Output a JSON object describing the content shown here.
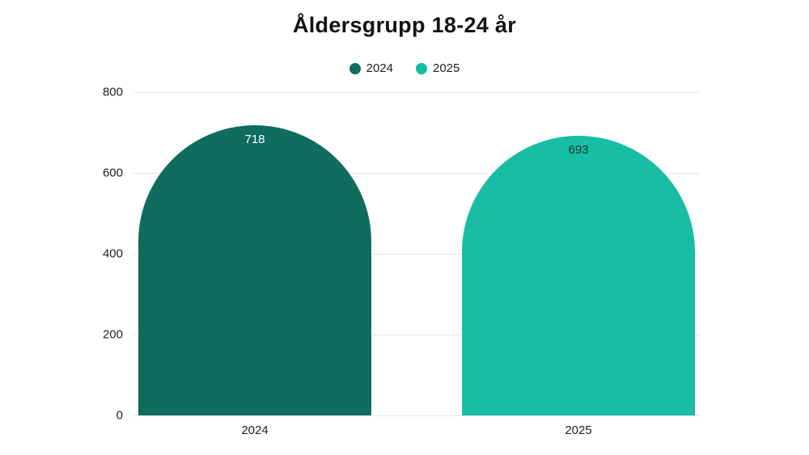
{
  "title": "Åldersgrupp 18-24 år",
  "legend": [
    {
      "label": "2024",
      "color": "#0f6c5f"
    },
    {
      "label": "2025",
      "color": "#17bda4"
    }
  ],
  "chart_data": {
    "type": "bar",
    "title": "Åldersgrupp 18-24 år",
    "categories": [
      "2024",
      "2025"
    ],
    "values": [
      718,
      693
    ],
    "value_labels": [
      "718",
      "693"
    ],
    "bar_colors": [
      "#0f6c5f",
      "#17bda4"
    ],
    "value_label_colors": [
      "#ffffff",
      "#123b33"
    ],
    "xlabel": "",
    "ylabel": "",
    "ylim": [
      0,
      800
    ],
    "yticks": [
      0,
      200,
      400,
      600,
      800
    ],
    "grid": true,
    "legend_position": "top",
    "bar_shape": "rounded-top"
  }
}
